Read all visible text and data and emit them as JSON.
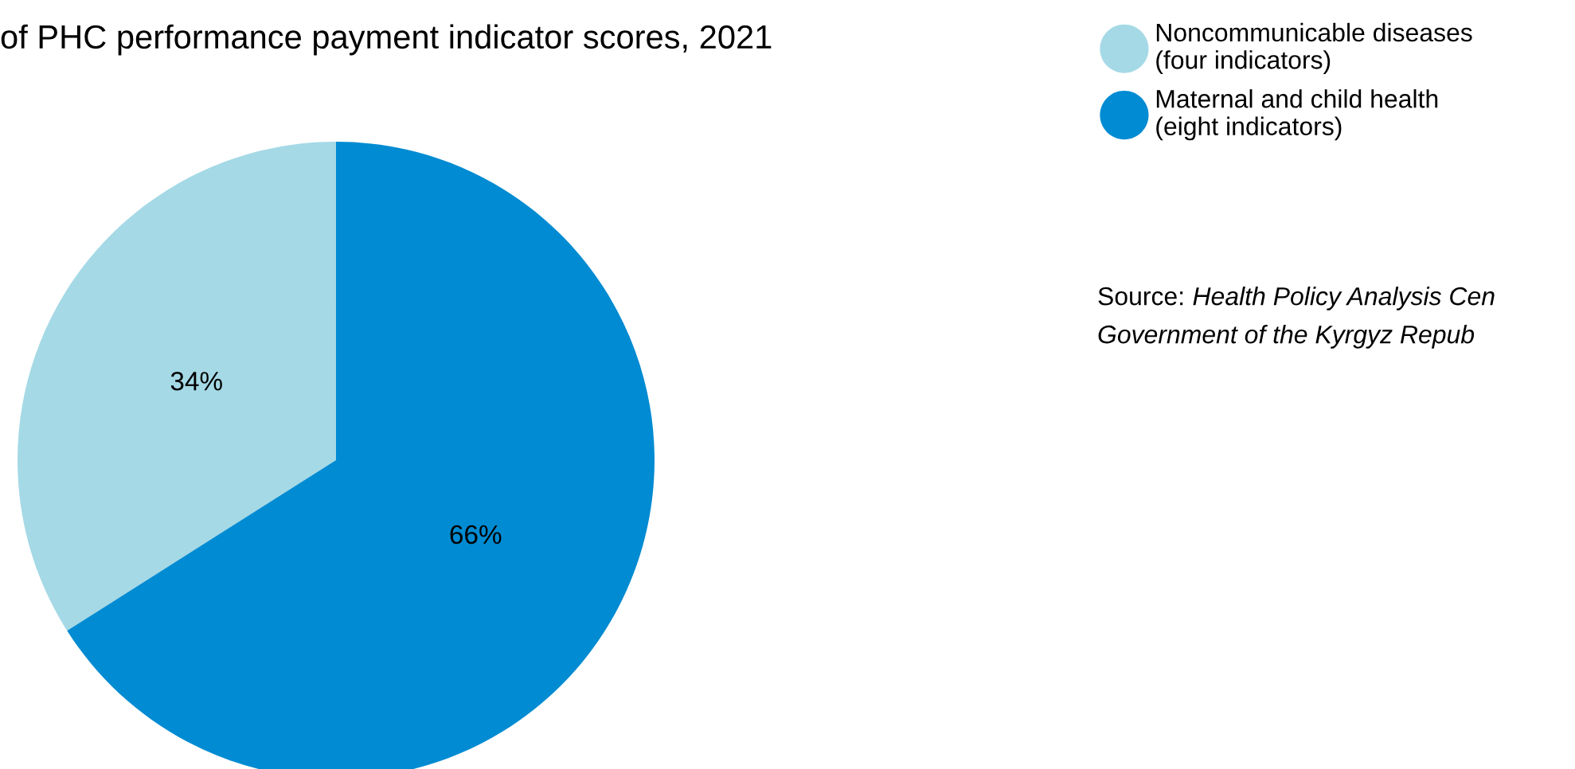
{
  "chart_data": {
    "type": "pie",
    "title": "of PHC performance payment indicator scores, 2021",
    "categories": [
      "Noncommunicable diseases\n(four indicators)",
      "Maternal and child health\n(eight indicators)"
    ],
    "values": [
      34,
      66
    ],
    "colors": [
      "#a5d9e6",
      "#008bd2"
    ],
    "value_labels": [
      "34%",
      "66%"
    ],
    "legend": "right",
    "annotations": [
      "Source: Health Policy Analysis Cen\nGovernment of the Kyrgyz Repub"
    ]
  }
}
